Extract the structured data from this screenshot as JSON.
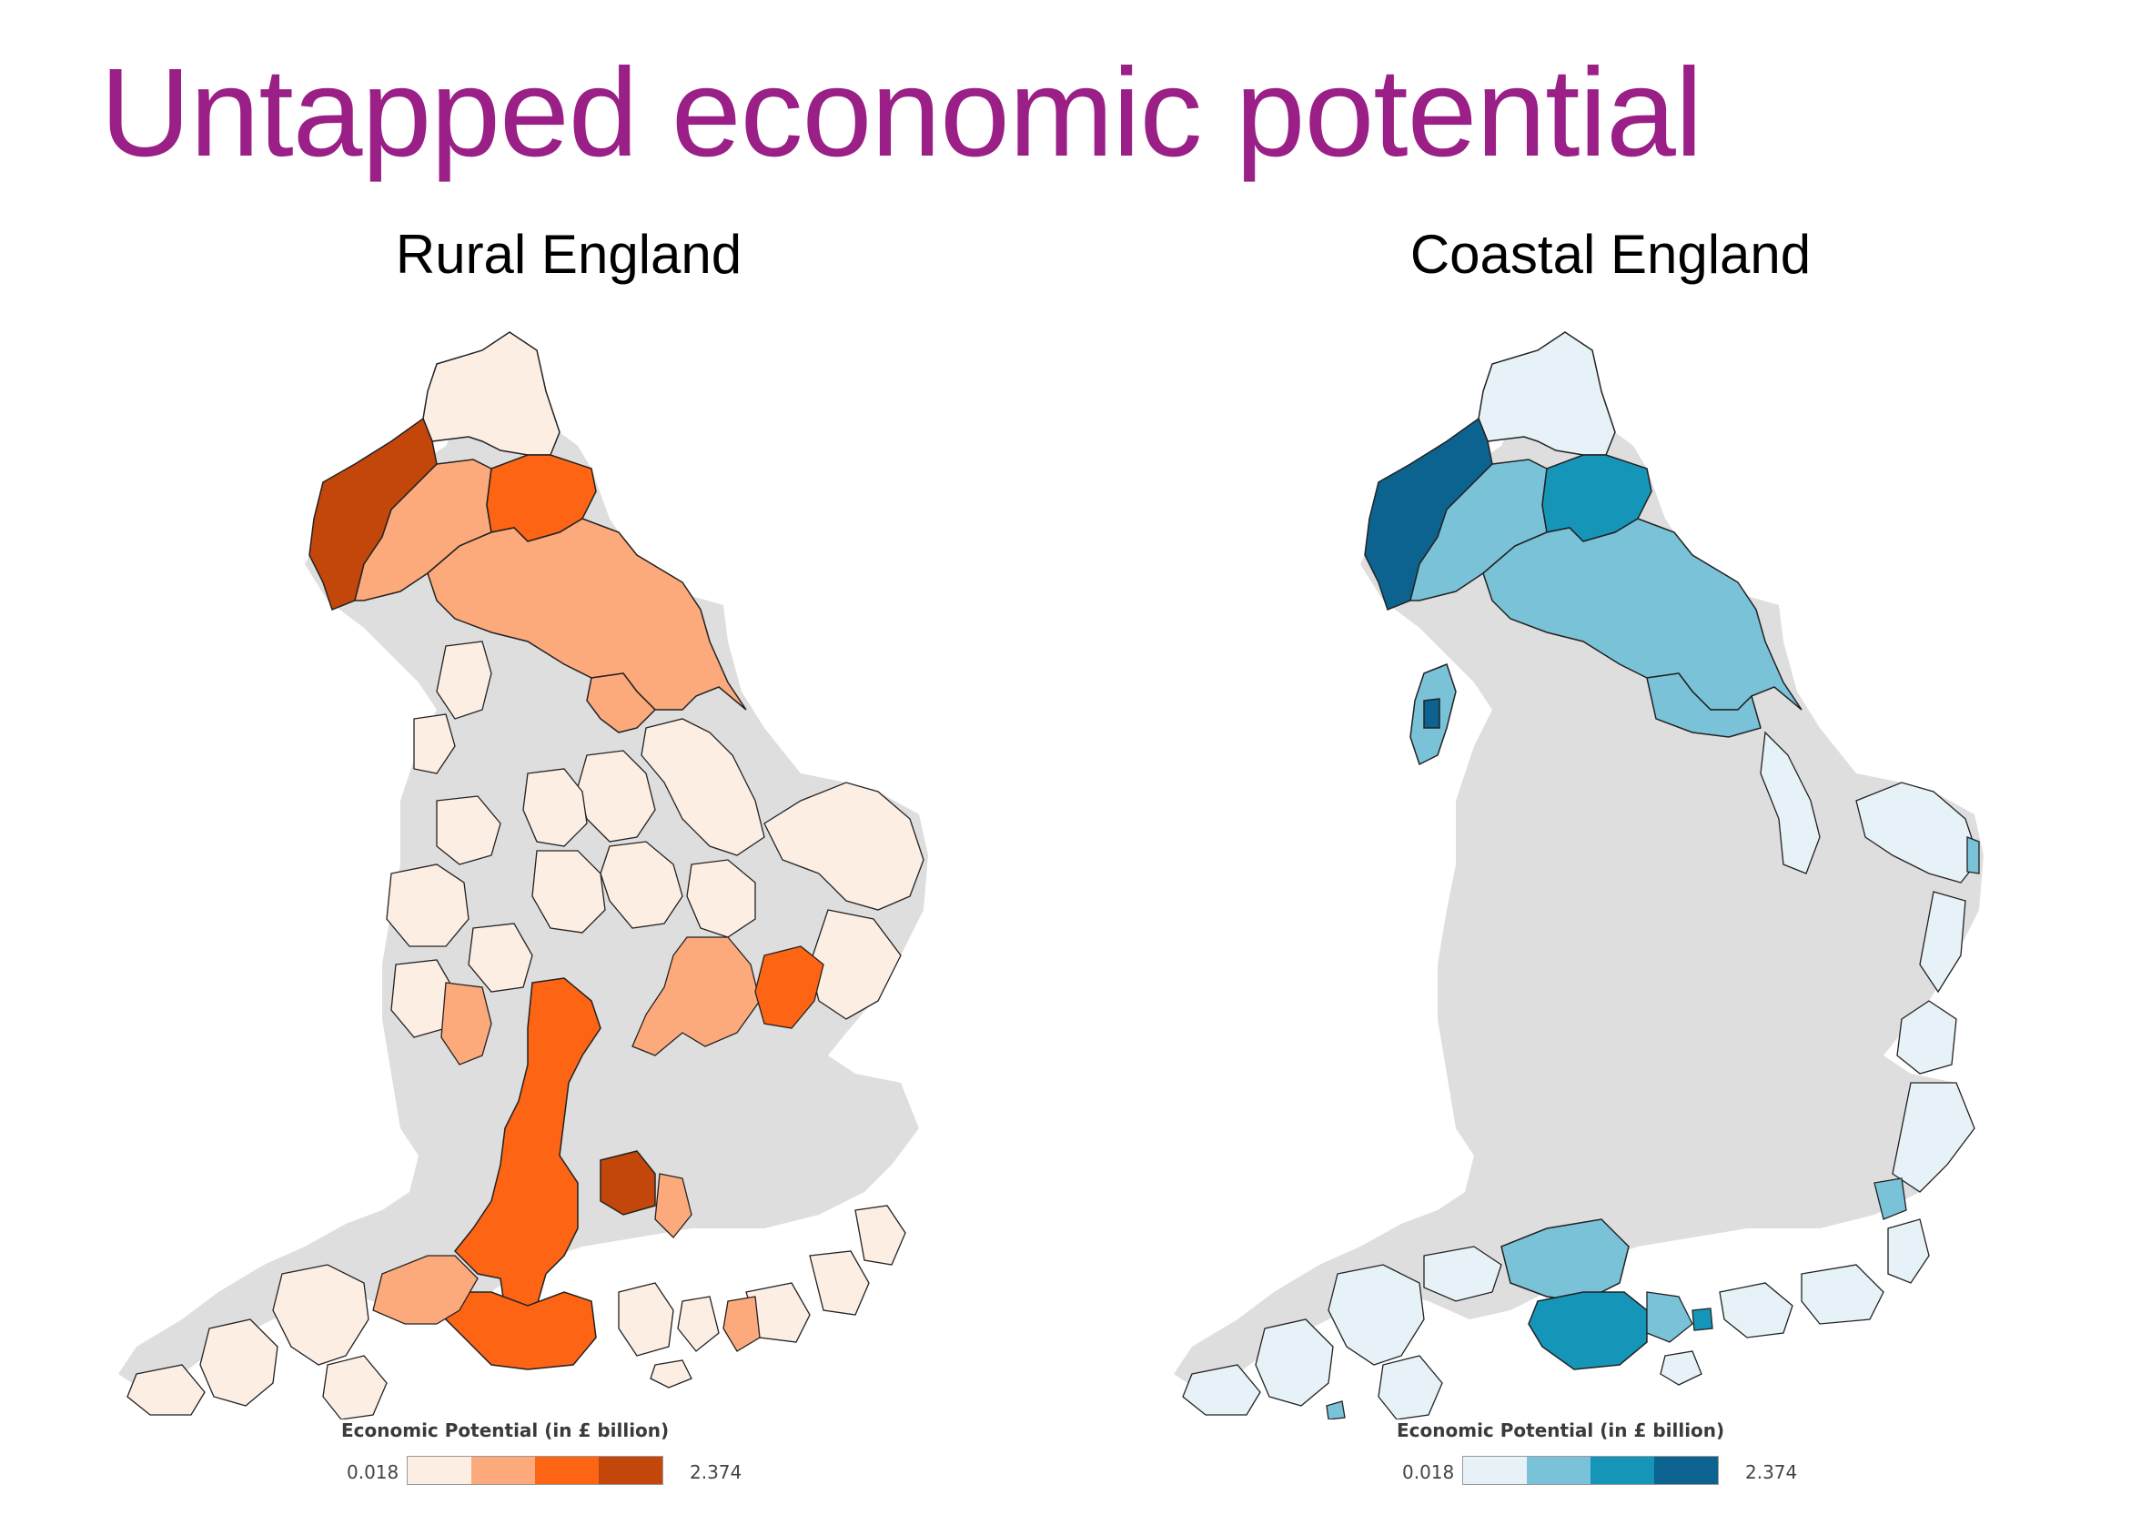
{
  "title": "Untapped economic potential",
  "panels": [
    {
      "id": "rural",
      "title": "Rural England",
      "legend": {
        "title": "Economic Potential (in £ billion)",
        "min": "0.018",
        "max": "2.374",
        "colors": [
          "#fdeee3",
          "#fca97c",
          "#fd6414",
          "#c3470a"
        ]
      }
    },
    {
      "id": "coastal",
      "title": "Coastal England",
      "legend": {
        "title": "Economic Potential (in £ billion)",
        "min": "0.018",
        "max": "2.374",
        "colors": [
          "#e6f2f7",
          "#79c2d8",
          "#1596b9",
          "#0d6390"
        ]
      }
    }
  ],
  "colors": {
    "title": "#9a1f86",
    "land_grey": "#dedede",
    "boundary": "#222222"
  }
}
